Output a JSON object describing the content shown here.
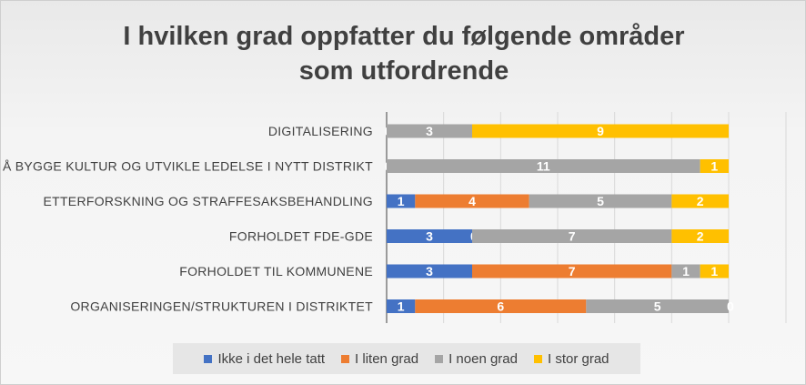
{
  "chart_data": {
    "type": "bar",
    "orientation": "horizontal",
    "stacked": true,
    "title": "I hvilken grad oppfatter du følgende områder som utfordrende",
    "title_lines": [
      "I hvilken grad oppfatter du følgende områder",
      "som utfordrende"
    ],
    "categories": [
      "DIGITALISERING",
      "Å BYGGE KULTUR OG UTVIKLE LEDELSE I NYTT DISTRIKT",
      "ETTERFORSKNING OG STRAFFESAKSBEHANDLING",
      "FORHOLDET FDE-GDE",
      "FORHOLDET TIL KOMMUNENE",
      "ORGANISERINGEN/STRUKTUREN I DISTRIKTET"
    ],
    "series": [
      {
        "name": "Ikke i det hele tatt",
        "color": "#4472C4",
        "values": [
          0,
          0,
          1,
          3,
          3,
          1
        ]
      },
      {
        "name": "I liten grad",
        "color": "#ED7D31",
        "values": [
          0,
          0,
          4,
          0,
          7,
          6
        ]
      },
      {
        "name": "I noen grad",
        "color": "#A5A5A5",
        "values": [
          3,
          11,
          5,
          7,
          1,
          5
        ]
      },
      {
        "name": "I stor grad",
        "color": "#FFC000",
        "values": [
          9,
          1,
          2,
          2,
          1,
          0
        ]
      }
    ],
    "xlim": [
      0,
      12
    ],
    "grid": true,
    "legend": "bottom"
  }
}
